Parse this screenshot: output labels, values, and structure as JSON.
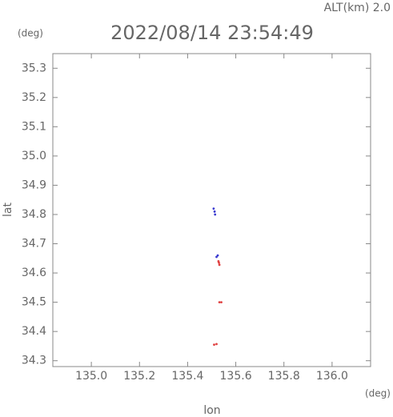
{
  "chart_data": {
    "type": "scatter",
    "title": "2022/08/14 23:54:49",
    "subtitle": "ALT(km) 2.0",
    "y_unit": "(deg)",
    "x_unit": "(deg)",
    "x_label": "lon",
    "y_label": "lat",
    "xlim": [
      134.84,
      136.16
    ],
    "ylim": [
      34.28,
      35.35
    ],
    "xticks": [
      {
        "value": 135,
        "label": "135.0"
      },
      135.2,
      135.4,
      135.6,
      135.8,
      {
        "value": 136,
        "label": "136.0"
      }
    ],
    "yticks": [
      34.3,
      34.4,
      34.5,
      34.6,
      34.7,
      34.8,
      34.9,
      {
        "value": 35,
        "label": "35.0"
      },
      35.1,
      35.2,
      35.3
    ],
    "series": [
      {
        "color": "#3a3ad0",
        "x": [
          135.508,
          135.512,
          135.514,
          135.52,
          135.525
        ],
        "y": [
          34.82,
          34.81,
          34.8,
          34.655,
          34.66
        ]
      },
      {
        "color": "#e04040",
        "x": [
          135.53,
          135.532,
          135.528,
          135.532,
          135.54,
          135.51,
          135.52
        ],
        "y": [
          34.635,
          34.628,
          34.64,
          34.5,
          34.5,
          34.355,
          34.357
        ]
      }
    ]
  }
}
